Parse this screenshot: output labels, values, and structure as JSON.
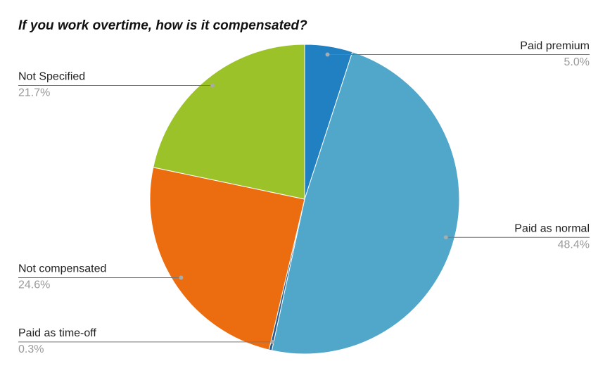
{
  "chart_data": {
    "type": "pie",
    "title": "If you work overtime, how is it compensated?",
    "categories": [
      "Paid premium",
      "Paid as normal",
      "Paid as time-off",
      "Not compensated",
      "Not Specified"
    ],
    "values": [
      5.0,
      48.4,
      0.3,
      24.6,
      21.7
    ],
    "value_labels": [
      "5.0%",
      "48.4%",
      "0.3%",
      "24.6%",
      "21.7%"
    ],
    "colors": [
      "#2080c1",
      "#50a7ca",
      "#2a5b8c",
      "#ec6d0f",
      "#9bc229"
    ]
  }
}
